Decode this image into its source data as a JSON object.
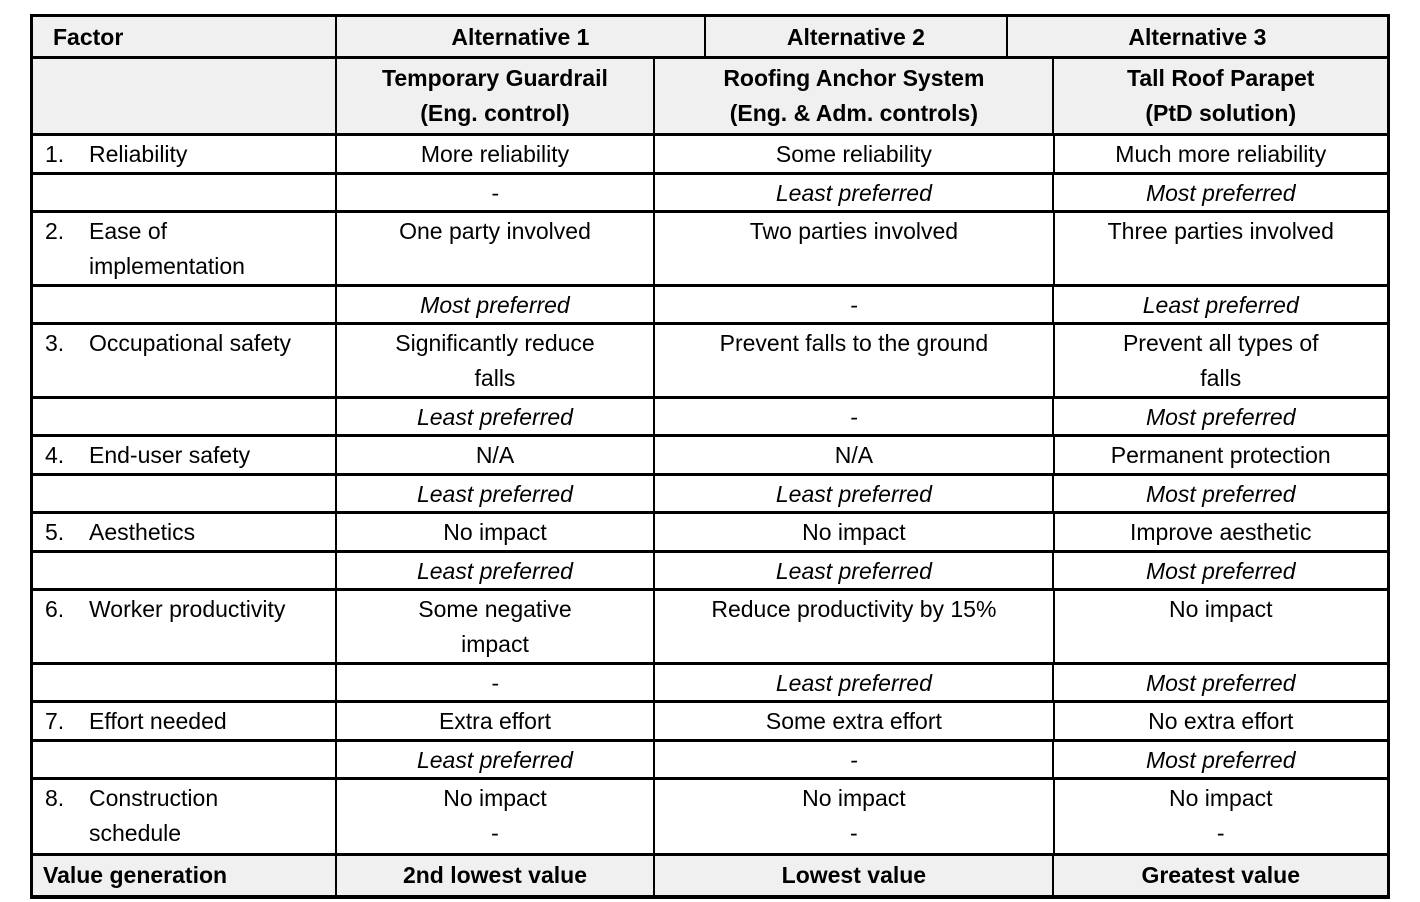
{
  "colors": {
    "header_bg": "#f0f0f0",
    "body_bg": "#ffffff",
    "border": "#000000",
    "text": "#000000"
  },
  "table": {
    "header": {
      "factor_label": "Factor",
      "alternatives": [
        "Alternative 1",
        "Alternative 2",
        "Alternative 3"
      ]
    },
    "subheader": {
      "columns": [
        {
          "name": "Temporary Guardrail",
          "type": "(Eng. control)"
        },
        {
          "name": "Roofing Anchor System",
          "type": "(Eng. & Adm. controls)"
        },
        {
          "name": "Tall Roof Parapet",
          "type": "(PtD solution)"
        }
      ]
    },
    "factors": [
      {
        "num": "1.",
        "name": "Reliability",
        "values": [
          "More reliability",
          "Some reliability",
          "Much more reliability"
        ],
        "preferences": [
          "-",
          "Least preferred",
          "Most preferred"
        ]
      },
      {
        "num": "2.",
        "name": "Ease of implementation",
        "values": [
          "One party involved",
          "Two parties involved",
          "Three parties involved"
        ],
        "preferences": [
          "Most preferred",
          "-",
          "Least preferred"
        ]
      },
      {
        "num": "3.",
        "name": "Occupational safety",
        "values": [
          "Significantly reduce\nfalls",
          "Prevent falls to the ground",
          "Prevent all types of\nfalls"
        ],
        "preferences": [
          "Least preferred",
          "-",
          "Most preferred"
        ]
      },
      {
        "num": "4.",
        "name": "End-user safety",
        "values": [
          "N/A",
          "N/A",
          "Permanent protection"
        ],
        "preferences": [
          "Least preferred",
          "Least preferred",
          "Most preferred"
        ]
      },
      {
        "num": "5.",
        "name": "Aesthetics",
        "values": [
          "No impact",
          "No impact",
          "Improve aesthetic"
        ],
        "preferences": [
          "Least preferred",
          "Least preferred",
          "Most preferred"
        ]
      },
      {
        "num": "6.",
        "name": "Worker productivity",
        "values": [
          "Some negative\nimpact",
          "Reduce productivity by 15%",
          "No impact"
        ],
        "preferences": [
          "-",
          "Least preferred",
          "Most preferred"
        ]
      },
      {
        "num": "7.",
        "name": "Effort needed",
        "values": [
          "Extra effort",
          "Some extra effort",
          "No extra effort"
        ],
        "preferences": [
          "Least preferred",
          "-",
          "Most preferred"
        ]
      },
      {
        "num": "8.",
        "name": "Construction schedule",
        "combined": true,
        "values": [
          "No impact",
          "No impact",
          "No impact"
        ],
        "preferences": [
          "-",
          "-",
          "-"
        ]
      }
    ],
    "footer": {
      "label": "Value generation",
      "values": [
        "2nd lowest value",
        "Lowest value",
        "Greatest value"
      ]
    }
  }
}
